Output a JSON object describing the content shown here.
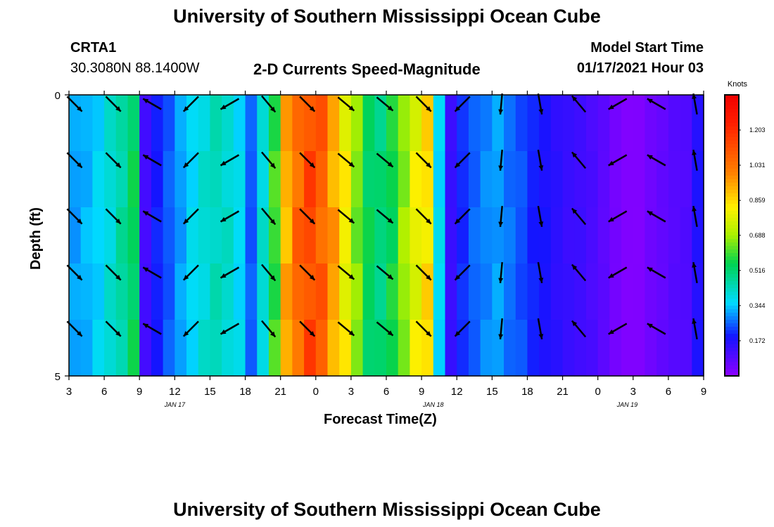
{
  "page": {
    "title": "University of Southern Mississippi Ocean Cube",
    "footer_title": "University of Southern Mississippi Ocean Cube",
    "station": "CRTA1",
    "coords": "30.3080N 88.1400W",
    "subtitle": "2-D Currents Speed-Magnitude",
    "model_label": "Model Start Time",
    "model_time": "01/17/2021 Hour 03"
  },
  "chart_data": {
    "type": "heatmap",
    "xlabel": "Forecast Time(Z)",
    "ylabel": "Depth (ft)",
    "x_ticks": [
      "3",
      "6",
      "9",
      "12",
      "15",
      "18",
      "21",
      "0",
      "3",
      "6",
      "9",
      "12",
      "15",
      "18",
      "21",
      "0",
      "3",
      "6",
      "9"
    ],
    "x_tick_hours": [
      0,
      3,
      6,
      9,
      12,
      15,
      18,
      21,
      24,
      27,
      30,
      33,
      36,
      39,
      42,
      45,
      48,
      51,
      54
    ],
    "date_labels": [
      {
        "text": "JAN 17",
        "hour": 9
      },
      {
        "text": "JAN 18",
        "hour": 31
      },
      {
        "text": "JAN 19",
        "hour": 47.5
      }
    ],
    "y_ticks": [
      "0",
      "5"
    ],
    "y_range": [
      0,
      5
    ],
    "x_range_hours": [
      0,
      54
    ],
    "colorbar": {
      "label": "Knots",
      "ticks": [
        "1.203",
        "1.031",
        "0.859",
        "0.688",
        "0.516",
        "0.344",
        "0.172"
      ],
      "tick_values": [
        1.203,
        1.031,
        0.859,
        0.688,
        0.516,
        0.344,
        0.172
      ],
      "range": [
        0.0,
        1.375
      ]
    },
    "time_hours": [
      0,
      1,
      2,
      3,
      4,
      5,
      6,
      7,
      8,
      9,
      10,
      11,
      12,
      13,
      14,
      15,
      16,
      17,
      18,
      19,
      20,
      21,
      22,
      23,
      24,
      25,
      26,
      27,
      28,
      29,
      30,
      31,
      32,
      33,
      34,
      35,
      36,
      37,
      38,
      39,
      40,
      41,
      42,
      43,
      44,
      45,
      46,
      47,
      48,
      49,
      50,
      51,
      52,
      53,
      54
    ],
    "speed_knots": [
      0.32,
      0.34,
      0.37,
      0.42,
      0.48,
      0.56,
      0.12,
      0.21,
      0.26,
      0.32,
      0.38,
      0.42,
      0.45,
      0.43,
      0.38,
      0.26,
      0.42,
      0.62,
      0.96,
      1.1,
      1.18,
      1.12,
      0.98,
      0.84,
      0.68,
      0.56,
      0.52,
      0.58,
      0.7,
      0.82,
      0.88,
      0.38,
      0.14,
      0.22,
      0.27,
      0.3,
      0.32,
      0.28,
      0.25,
      0.21,
      0.19,
      0.16,
      0.14,
      0.13,
      0.11,
      0.08,
      0.04,
      0.02,
      0.02,
      0.05,
      0.07,
      0.09,
      0.1,
      0.18,
      0.22
    ],
    "vector_times_hours": [
      0,
      3.3,
      6.6,
      9.9,
      13.2,
      16.5,
      19.8,
      23.1,
      26.4,
      29.7,
      33,
      36.3,
      39.6,
      42.9,
      46.2,
      49.5,
      52.8
    ],
    "vector_depths_ft": [
      0.1,
      1.1,
      2.1,
      3.1,
      4.1
    ],
    "vector_dir_deg": [
      135,
      135,
      300,
      225,
      240,
      140,
      135,
      130,
      130,
      135,
      225,
      185,
      170,
      320,
      240,
      300,
      350
    ]
  }
}
